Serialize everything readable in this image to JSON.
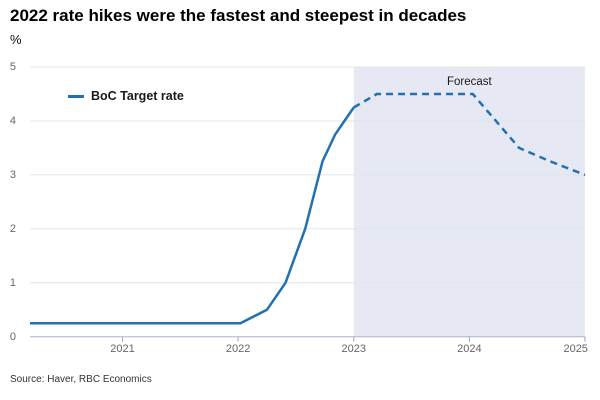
{
  "title": "2022 rate hikes were the fastest and steepest in decades",
  "subtitle": "%",
  "legend": {
    "label": "BoC Target rate"
  },
  "annotations": {
    "forecast_label": "Forecast"
  },
  "source": "Source: Haver, RBC Economics",
  "colors": {
    "line": "#2171b2",
    "forecast_shade": "#e6e9f3",
    "gridline": "#e2e4e9",
    "axis_line": "#aab6cc",
    "tick": "#9aa5b8",
    "axis_label": "#666666",
    "title": "#000000"
  },
  "chart_data": {
    "type": "line",
    "title": "2022 rate hikes were the fastest and steepest in decades",
    "ylabel": "%",
    "xlabel": "",
    "xlim": [
      2020.2,
      2025.0
    ],
    "ylim": [
      0,
      5
    ],
    "x_ticks": [
      2021,
      2022,
      2023,
      2024,
      2025
    ],
    "y_ticks": [
      0,
      1,
      2,
      3,
      4,
      5
    ],
    "grid": true,
    "legend_position": "top-left-inside",
    "forecast_start": 2023.0,
    "forecast_label_x": 2024.0,
    "series": [
      {
        "name": "BoC Target rate",
        "style": "solid",
        "points": [
          [
            2020.2,
            0.25
          ],
          [
            2022.02,
            0.25
          ],
          [
            2022.25,
            0.5
          ],
          [
            2022.41,
            1.0
          ],
          [
            2022.58,
            2.0
          ],
          [
            2022.73,
            3.25
          ],
          [
            2022.84,
            3.75
          ],
          [
            2023.0,
            4.25
          ]
        ]
      },
      {
        "name": "BoC Target rate (forecast)",
        "style": "dashed",
        "points": [
          [
            2023.0,
            4.25
          ],
          [
            2023.2,
            4.5
          ],
          [
            2024.03,
            4.5
          ],
          [
            2024.43,
            3.5
          ],
          [
            2024.7,
            3.25
          ],
          [
            2025.0,
            3.0
          ]
        ]
      }
    ]
  }
}
